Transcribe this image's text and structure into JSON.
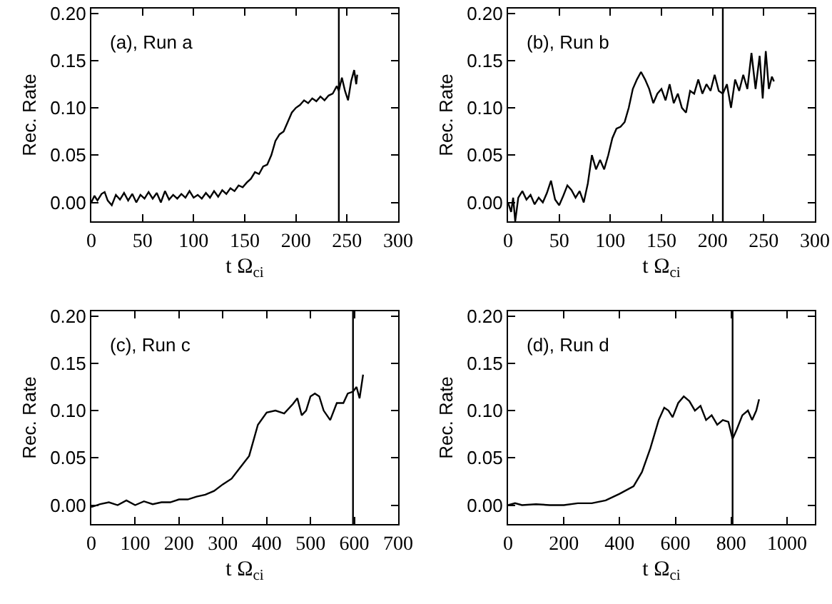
{
  "chart_data": [
    {
      "type": "line",
      "annotations": [
        "(a), Run a"
      ],
      "xlabel": "t Ω$_{ci}$",
      "ylabel": "Rec. Rate",
      "xlim": [
        0,
        300
      ],
      "xticks": [
        0,
        50,
        100,
        150,
        200,
        250,
        300
      ],
      "ylim": [
        -0.02,
        0.205
      ],
      "yticks": [
        {
          "value": 0,
          "label": "0.00"
        },
        {
          "value": 0.05,
          "label": "0.05"
        },
        {
          "value": 0.1,
          "label": "0.10"
        },
        {
          "value": 0.15,
          "label": "0.15"
        },
        {
          "value": 0.2,
          "label": "0.20"
        }
      ],
      "ref_lines": [
        {
          "axis": "x",
          "value": 242,
          "color": "#000000"
        }
      ],
      "series": [
        {
          "color": "#000000",
          "x": [
            0,
            3,
            6,
            10,
            13,
            16,
            20,
            24,
            28,
            32,
            36,
            40,
            44,
            48,
            52,
            56,
            60,
            64,
            68,
            72,
            76,
            80,
            84,
            88,
            92,
            96,
            100,
            104,
            108,
            112,
            116,
            120,
            124,
            128,
            132,
            136,
            140,
            144,
            148,
            152,
            156,
            160,
            164,
            168,
            172,
            176,
            180,
            184,
            188,
            192,
            196,
            200,
            204,
            208,
            212,
            216,
            220,
            224,
            228,
            232,
            236,
            240,
            242,
            245,
            248,
            251,
            254,
            257,
            259,
            260
          ],
          "values": [
            0.0,
            0.007,
            0.002,
            0.009,
            0.011,
            0.002,
            -0.003,
            0.008,
            0.003,
            0.01,
            0.002,
            0.009,
            0.0,
            0.008,
            0.004,
            0.011,
            0.004,
            0.01,
            0.0,
            0.012,
            0.003,
            0.008,
            0.004,
            0.009,
            0.005,
            0.012,
            0.005,
            0.008,
            0.004,
            0.01,
            0.005,
            0.012,
            0.006,
            0.013,
            0.009,
            0.015,
            0.012,
            0.018,
            0.016,
            0.021,
            0.025,
            0.032,
            0.03,
            0.038,
            0.04,
            0.05,
            0.065,
            0.072,
            0.075,
            0.085,
            0.095,
            0.1,
            0.103,
            0.108,
            0.105,
            0.11,
            0.107,
            0.112,
            0.108,
            0.113,
            0.115,
            0.123,
            0.118,
            0.132,
            0.118,
            0.108,
            0.128,
            0.14,
            0.125,
            0.135
          ]
        }
      ]
    },
    {
      "type": "line",
      "annotations": [
        "(b), Run b"
      ],
      "xlabel": "t Ω$_{ci}$",
      "ylabel": "Rec. Rate",
      "xlim": [
        0,
        300
      ],
      "xticks": [
        0,
        50,
        100,
        150,
        200,
        250,
        300
      ],
      "ylim": [
        -0.02,
        0.205
      ],
      "yticks": [
        {
          "value": 0,
          "label": "0.00"
        },
        {
          "value": 0.05,
          "label": "0.05"
        },
        {
          "value": 0.1,
          "label": "0.10"
        },
        {
          "value": 0.15,
          "label": "0.15"
        },
        {
          "value": 0.2,
          "label": "0.20"
        }
      ],
      "ref_lines": [
        {
          "axis": "x",
          "value": 210,
          "color": "#000000"
        }
      ],
      "series": [
        {
          "color": "#000000",
          "x": [
            0,
            3,
            5,
            7,
            10,
            14,
            18,
            22,
            26,
            30,
            34,
            38,
            42,
            46,
            50,
            54,
            58,
            62,
            66,
            70,
            74,
            78,
            82,
            86,
            90,
            94,
            98,
            102,
            106,
            110,
            114,
            118,
            122,
            126,
            130,
            134,
            138,
            142,
            146,
            150,
            154,
            158,
            162,
            166,
            170,
            174,
            178,
            182,
            186,
            190,
            194,
            198,
            202,
            206,
            210,
            214,
            218,
            222,
            226,
            230,
            234,
            238,
            242,
            246,
            249,
            252,
            255,
            258,
            260
          ],
          "values": [
            0.0,
            -0.01,
            0.005,
            -0.02,
            0.005,
            0.012,
            0.003,
            0.008,
            -0.002,
            0.005,
            0.0,
            0.01,
            0.023,
            0.003,
            -0.003,
            0.007,
            0.018,
            0.013,
            0.005,
            0.012,
            0.0,
            0.02,
            0.05,
            0.035,
            0.045,
            0.035,
            0.05,
            0.068,
            0.078,
            0.08,
            0.085,
            0.1,
            0.12,
            0.13,
            0.138,
            0.13,
            0.12,
            0.105,
            0.115,
            0.12,
            0.108,
            0.125,
            0.105,
            0.115,
            0.1,
            0.095,
            0.118,
            0.115,
            0.13,
            0.115,
            0.125,
            0.118,
            0.135,
            0.118,
            0.115,
            0.125,
            0.1,
            0.13,
            0.118,
            0.135,
            0.12,
            0.158,
            0.12,
            0.155,
            0.11,
            0.16,
            0.12,
            0.133,
            0.128
          ]
        }
      ]
    },
    {
      "type": "line",
      "annotations": [
        "(c), Run c"
      ],
      "xlabel": "t Ω$_{ci}$",
      "ylabel": "Rec. Rate",
      "xlim": [
        0,
        700
      ],
      "xticks": [
        0,
        100,
        200,
        300,
        400,
        500,
        600,
        700
      ],
      "ylim": [
        -0.02,
        0.205
      ],
      "yticks": [
        {
          "value": 0,
          "label": "0.00"
        },
        {
          "value": 0.05,
          "label": "0.05"
        },
        {
          "value": 0.1,
          "label": "0.10"
        },
        {
          "value": 0.15,
          "label": "0.15"
        },
        {
          "value": 0.2,
          "label": "0.20"
        }
      ],
      "ref_lines": [
        {
          "axis": "x",
          "value": 597,
          "color": "#000000"
        }
      ],
      "series": [
        {
          "color": "#000000",
          "x": [
            0,
            20,
            40,
            60,
            80,
            100,
            120,
            140,
            160,
            180,
            200,
            220,
            240,
            260,
            280,
            300,
            320,
            340,
            360,
            380,
            400,
            420,
            440,
            460,
            470,
            480,
            490,
            500,
            510,
            520,
            530,
            545,
            560,
            575,
            585,
            597,
            605,
            612,
            620
          ],
          "values": [
            -0.002,
            0.001,
            0.003,
            0.0,
            0.005,
            0.0,
            0.004,
            0.001,
            0.003,
            0.003,
            0.006,
            0.006,
            0.009,
            0.011,
            0.015,
            0.022,
            0.028,
            0.04,
            0.052,
            0.085,
            0.098,
            0.1,
            0.097,
            0.107,
            0.113,
            0.095,
            0.1,
            0.115,
            0.118,
            0.115,
            0.1,
            0.09,
            0.108,
            0.108,
            0.118,
            0.12,
            0.125,
            0.113,
            0.138
          ]
        }
      ]
    },
    {
      "type": "line",
      "annotations": [
        "(d), Run d"
      ],
      "xlabel": "t Ω$_{ci}$",
      "ylabel": "Rec. Rate",
      "xlim": [
        0,
        1100
      ],
      "xticks": [
        0,
        200,
        400,
        600,
        800,
        1000
      ],
      "ylim": [
        -0.02,
        0.205
      ],
      "yticks": [
        {
          "value": 0,
          "label": "0.00"
        },
        {
          "value": 0.05,
          "label": "0.05"
        },
        {
          "value": 0.1,
          "label": "0.10"
        },
        {
          "value": 0.15,
          "label": "0.15"
        },
        {
          "value": 0.2,
          "label": "0.20"
        }
      ],
      "ref_lines": [
        {
          "axis": "x",
          "value": 805,
          "color": "#000000"
        }
      ],
      "series": [
        {
          "color": "#000000",
          "x": [
            0,
            25,
            50,
            100,
            150,
            200,
            250,
            300,
            350,
            400,
            450,
            480,
            510,
            540,
            560,
            575,
            590,
            610,
            630,
            650,
            670,
            690,
            710,
            730,
            750,
            770,
            790,
            805,
            820,
            840,
            860,
            875,
            890,
            900
          ],
          "values": [
            0.0,
            0.002,
            0.0,
            0.001,
            0.0,
            0.0,
            0.002,
            0.002,
            0.005,
            0.012,
            0.02,
            0.035,
            0.06,
            0.09,
            0.103,
            0.1,
            0.093,
            0.108,
            0.115,
            0.11,
            0.1,
            0.105,
            0.09,
            0.095,
            0.085,
            0.09,
            0.088,
            0.07,
            0.08,
            0.095,
            0.1,
            0.09,
            0.1,
            0.112
          ]
        }
      ]
    }
  ]
}
